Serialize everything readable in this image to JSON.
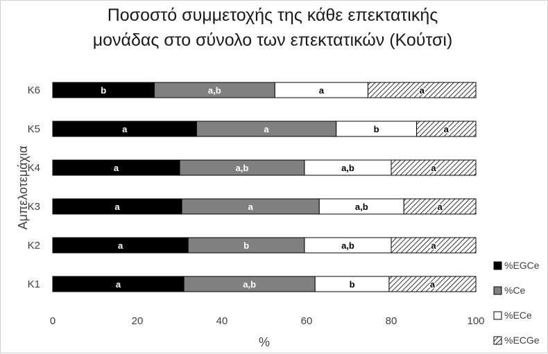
{
  "chart_data": {
    "type": "bar",
    "orientation": "horizontal",
    "stacked": "percent",
    "title_lines": [
      "Ποσοστό συμμετοχής της κάθε επεκτατικής",
      "μονάδας στο σύνολο των επεκτατικών  (Κούτσι)"
    ],
    "xlabel": "%",
    "ylabel": "Αμπελοτεμάχια",
    "xlim": [
      0,
      100
    ],
    "xticks": [
      "0",
      "20",
      "40",
      "60",
      "80",
      "100"
    ],
    "categories": [
      "Κ1",
      "Κ2",
      "Κ3",
      "Κ4",
      "Κ5",
      "Κ6"
    ],
    "legend_position": "right",
    "grid": false,
    "series": [
      {
        "name": "%EGCe",
        "color": "#000000",
        "pattern": "solid",
        "values": [
          31,
          32,
          30.5,
          30,
          34,
          24
        ],
        "labels": [
          "a",
          "a",
          "a",
          "a",
          "a",
          "b"
        ]
      },
      {
        "name": "%Ce",
        "color": "#808080",
        "pattern": "solid",
        "values": [
          31,
          27.5,
          32.5,
          29.5,
          33,
          28.5
        ],
        "labels": [
          "a,b",
          "b",
          "a",
          "a,b",
          "a",
          "a,b"
        ]
      },
      {
        "name": "%ECe",
        "color": "#ffffff",
        "pattern": "solid",
        "values": [
          17.5,
          20.5,
          20,
          20.5,
          19,
          22
        ],
        "labels": [
          "b",
          "a,b",
          "a,b",
          "a,b",
          "b",
          "a"
        ]
      },
      {
        "name": "%ECGe",
        "color": "#ffffff",
        "pattern": "hatch",
        "values": [
          20.5,
          20,
          17,
          20,
          14,
          25.5
        ],
        "labels": [
          "a",
          "a",
          "a",
          "a",
          "a",
          "a"
        ]
      }
    ]
  }
}
